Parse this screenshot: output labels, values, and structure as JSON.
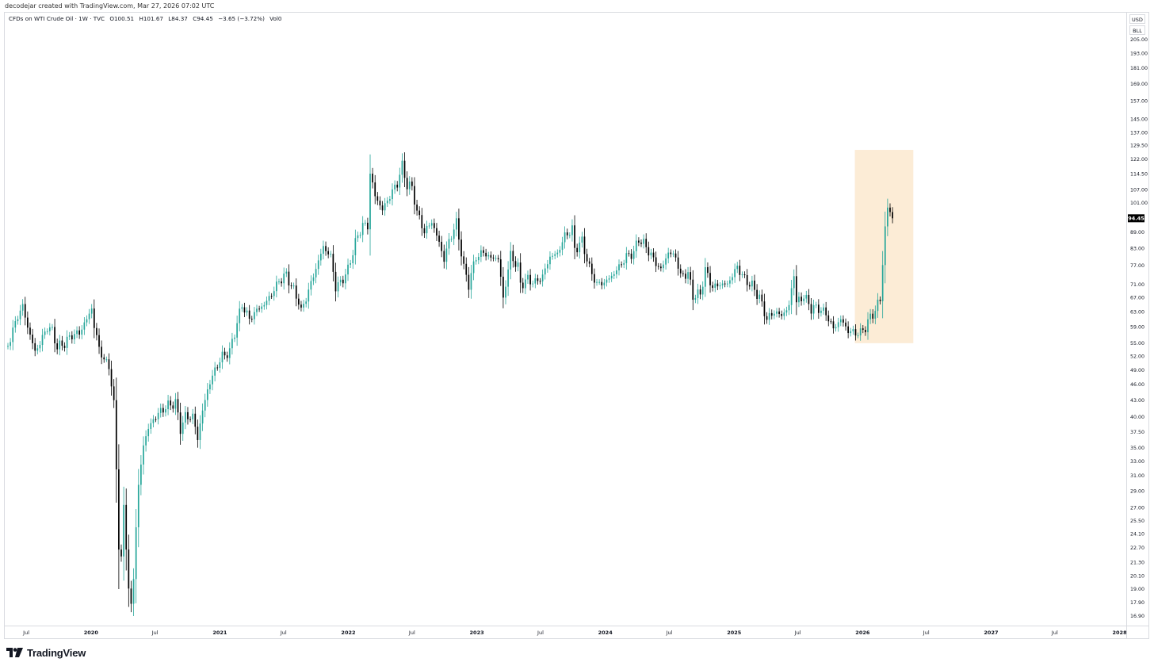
{
  "attribution": "decodejar created with TradingView.com, Mar 27, 2026 07:02 UTC",
  "legend": {
    "symbol": "CFDs on WTI Crude Oil · 1W · TVC",
    "open": "O100.51",
    "high": "H101.67",
    "low": "L84.37",
    "close": "C94.45",
    "change": "−3.65 (−3.72%)",
    "volume": "Vol0"
  },
  "units": {
    "currency": "USD",
    "unit": "BLL"
  },
  "brand": {
    "name": "TradingView"
  },
  "colors": {
    "up": "#26a69a",
    "down": "#000000",
    "highlight": "#fcecd6",
    "grid": "#f0f3fa",
    "last_price_bg": "#000000",
    "last_price_text": "#ffffff"
  },
  "chart_data": {
    "type": "candlestick",
    "timeframe": "1W",
    "scale": "log",
    "x_range": [
      "2019-05-01",
      "2028-01-20"
    ],
    "y_range": [
      16.2,
      230
    ],
    "last_price": 94.45,
    "last_price_label": "94.45",
    "y_ticks": [
      "205.00",
      "193.00",
      "181.00",
      "169.00",
      "157.00",
      "145.00",
      "137.00",
      "129.50",
      "122.00",
      "114.50",
      "107.00",
      "101.00",
      "89.00",
      "83.00",
      "77.00",
      "71.00",
      "67.00",
      "63.00",
      "59.00",
      "55.00",
      "52.00",
      "49.00",
      "46.00",
      "43.00",
      "40.00",
      "37.50",
      "35.00",
      "33.00",
      "31.00",
      "29.00",
      "27.00",
      "25.50",
      "24.10",
      "22.70",
      "21.30",
      "20.10",
      "19.00",
      "17.90",
      "16.90"
    ],
    "x_ticks": [
      {
        "label": "Jul",
        "date": "2019-07-01"
      },
      {
        "label": "2020",
        "date": "2020-01-01"
      },
      {
        "label": "Jul",
        "date": "2020-07-01"
      },
      {
        "label": "2021",
        "date": "2021-01-01"
      },
      {
        "label": "Jul",
        "date": "2021-07-01"
      },
      {
        "label": "2022",
        "date": "2022-01-01"
      },
      {
        "label": "Jul",
        "date": "2022-07-01"
      },
      {
        "label": "2023",
        "date": "2023-01-01"
      },
      {
        "label": "Jul",
        "date": "2023-07-01"
      },
      {
        "label": "2024",
        "date": "2024-01-01"
      },
      {
        "label": "Jul",
        "date": "2024-07-01"
      },
      {
        "label": "2025",
        "date": "2025-01-01"
      },
      {
        "label": "Jul",
        "date": "2025-07-01"
      },
      {
        "label": "2026",
        "date": "2026-01-01"
      },
      {
        "label": "Jul",
        "date": "2026-07-01"
      },
      {
        "label": "2027",
        "date": "2027-01-01"
      },
      {
        "label": "Jul",
        "date": "2027-07-01"
      },
      {
        "label": "2028",
        "date": "2028-01-01"
      }
    ],
    "highlight_box": {
      "x0": "2025-12-10",
      "x1": "2026-05-25",
      "y0": 55.0,
      "y1": 127.0
    },
    "close_path": [
      [
        "2019-05-03",
        53.0
      ],
      [
        "2019-05-24",
        58.0
      ],
      [
        "2019-06-07",
        62.0
      ],
      [
        "2019-06-21",
        64.5
      ],
      [
        "2019-07-05",
        59.0
      ],
      [
        "2019-07-26",
        53.0
      ],
      [
        "2019-08-09",
        55.0
      ],
      [
        "2019-08-30",
        59.0
      ],
      [
        "2019-09-13",
        58.0
      ],
      [
        "2019-09-27",
        54.0
      ],
      [
        "2019-10-18",
        55.0
      ],
      [
        "2019-11-08",
        57.0
      ],
      [
        "2019-11-29",
        57.5
      ],
      [
        "2019-12-20",
        61.0
      ],
      [
        "2020-01-03",
        64.0
      ],
      [
        "2020-01-10",
        59.0
      ],
      [
        "2020-01-24",
        54.0
      ],
      [
        "2020-02-07",
        51.0
      ],
      [
        "2020-02-21",
        50.0
      ],
      [
        "2020-03-06",
        42.0
      ],
      [
        "2020-03-13",
        32.0
      ],
      [
        "2020-03-20",
        23.0
      ],
      [
        "2020-03-27",
        21.5
      ],
      [
        "2020-04-03",
        27.0
      ],
      [
        "2020-04-17",
        19.0
      ],
      [
        "2020-04-24",
        17.5
      ],
      [
        "2020-05-01",
        20.0
      ],
      [
        "2020-05-08",
        25.0
      ],
      [
        "2020-05-15",
        29.5
      ],
      [
        "2020-05-29",
        35.5
      ],
      [
        "2020-06-12",
        38.0
      ],
      [
        "2020-06-26",
        39.5
      ],
      [
        "2020-07-17",
        41.0
      ],
      [
        "2020-08-07",
        42.0
      ],
      [
        "2020-08-28",
        42.5
      ],
      [
        "2020-09-11",
        38.0
      ],
      [
        "2020-09-25",
        40.0
      ],
      [
        "2020-10-16",
        40.0
      ],
      [
        "2020-10-30",
        36.5
      ],
      [
        "2020-11-13",
        41.0
      ],
      [
        "2020-11-27",
        45.0
      ],
      [
        "2020-12-18",
        49.0
      ],
      [
        "2021-01-08",
        52.0
      ],
      [
        "2021-01-29",
        53.0
      ],
      [
        "2021-02-19",
        60.0
      ],
      [
        "2021-03-05",
        65.0
      ],
      [
        "2021-03-26",
        61.0
      ],
      [
        "2021-04-16",
        63.5
      ],
      [
        "2021-05-07",
        65.0
      ],
      [
        "2021-05-28",
        68.0
      ],
      [
        "2021-06-18",
        72.0
      ],
      [
        "2021-07-09",
        74.0
      ],
      [
        "2021-07-23",
        70.5
      ],
      [
        "2021-08-13",
        66.0
      ],
      [
        "2021-08-20",
        63.0
      ],
      [
        "2021-09-10",
        69.0
      ],
      [
        "2021-10-01",
        76.0
      ],
      [
        "2021-10-22",
        83.5
      ],
      [
        "2021-11-12",
        80.0
      ],
      [
        "2021-11-26",
        70.0
      ],
      [
        "2021-12-10",
        71.5
      ],
      [
        "2021-12-31",
        75.5
      ],
      [
        "2022-01-21",
        85.0
      ],
      [
        "2022-02-11",
        92.0
      ],
      [
        "2022-02-25",
        91.0
      ],
      [
        "2022-03-04",
        115.0
      ],
      [
        "2022-03-18",
        104.0
      ],
      [
        "2022-04-08",
        98.0
      ],
      [
        "2022-04-29",
        104.0
      ],
      [
        "2022-05-20",
        110.0
      ],
      [
        "2022-06-03",
        118.5
      ],
      [
        "2022-06-17",
        109.0
      ],
      [
        "2022-07-01",
        108.0
      ],
      [
        "2022-07-15",
        97.0
      ],
      [
        "2022-08-05",
        89.0
      ],
      [
        "2022-08-26",
        93.0
      ],
      [
        "2022-09-16",
        85.0
      ],
      [
        "2022-09-30",
        79.0
      ],
      [
        "2022-10-14",
        85.5
      ],
      [
        "2022-11-04",
        92.5
      ],
      [
        "2022-11-25",
        76.0
      ],
      [
        "2022-12-09",
        71.0
      ],
      [
        "2022-12-30",
        80.0
      ],
      [
        "2023-01-20",
        81.5
      ],
      [
        "2023-02-10",
        79.5
      ],
      [
        "2023-03-03",
        79.5
      ],
      [
        "2023-03-17",
        66.5
      ],
      [
        "2023-04-07",
        80.5
      ],
      [
        "2023-04-28",
        76.5
      ],
      [
        "2023-05-05",
        71.0
      ],
      [
        "2023-05-26",
        72.5
      ],
      [
        "2023-06-16",
        71.5
      ],
      [
        "2023-07-07",
        73.5
      ],
      [
        "2023-07-28",
        80.0
      ],
      [
        "2023-08-18",
        81.0
      ],
      [
        "2023-09-08",
        87.5
      ],
      [
        "2023-09-29",
        90.0
      ],
      [
        "2023-10-06",
        82.5
      ],
      [
        "2023-10-27",
        85.5
      ],
      [
        "2023-11-17",
        76.0
      ],
      [
        "2023-12-08",
        71.0
      ],
      [
        "2023-12-29",
        71.5
      ],
      [
        "2024-01-19",
        73.5
      ],
      [
        "2024-02-09",
        76.5
      ],
      [
        "2024-03-01",
        80.0
      ],
      [
        "2024-03-22",
        81.5
      ],
      [
        "2024-04-05",
        86.5
      ],
      [
        "2024-04-26",
        83.5
      ],
      [
        "2024-05-17",
        79.0
      ],
      [
        "2024-06-07",
        75.5
      ],
      [
        "2024-06-28",
        81.5
      ],
      [
        "2024-07-19",
        80.0
      ],
      [
        "2024-08-02",
        73.5
      ],
      [
        "2024-08-23",
        74.5
      ],
      [
        "2024-09-06",
        67.5
      ],
      [
        "2024-09-27",
        68.0
      ],
      [
        "2024-10-11",
        75.5
      ],
      [
        "2024-11-01",
        70.0
      ],
      [
        "2024-11-22",
        71.0
      ],
      [
        "2024-12-13",
        71.0
      ],
      [
        "2025-01-10",
        76.5
      ],
      [
        "2025-01-31",
        72.5
      ],
      [
        "2025-02-21",
        70.5
      ],
      [
        "2025-03-14",
        67.0
      ],
      [
        "2025-04-04",
        61.0
      ],
      [
        "2025-04-25",
        63.0
      ],
      [
        "2025-05-16",
        62.0
      ],
      [
        "2025-06-06",
        64.5
      ],
      [
        "2025-06-20",
        74.5
      ],
      [
        "2025-06-27",
        65.5
      ],
      [
        "2025-07-18",
        67.5
      ],
      [
        "2025-08-08",
        64.0
      ],
      [
        "2025-08-29",
        64.0
      ],
      [
        "2025-09-19",
        62.5
      ],
      [
        "2025-10-10",
        58.5
      ],
      [
        "2025-10-31",
        61.0
      ],
      [
        "2025-11-21",
        58.0
      ],
      [
        "2025-12-12",
        57.5
      ],
      [
        "2025-12-26",
        57.5
      ],
      [
        "2026-01-09",
        59.0
      ],
      [
        "2026-01-23",
        61.5
      ],
      [
        "2026-02-06",
        63.5
      ],
      [
        "2026-02-20",
        66.5
      ],
      [
        "2026-03-06",
        90.0
      ],
      [
        "2026-03-13",
        98.5
      ],
      [
        "2026-03-20",
        98.1
      ],
      [
        "2026-03-27",
        94.45
      ]
    ]
  }
}
